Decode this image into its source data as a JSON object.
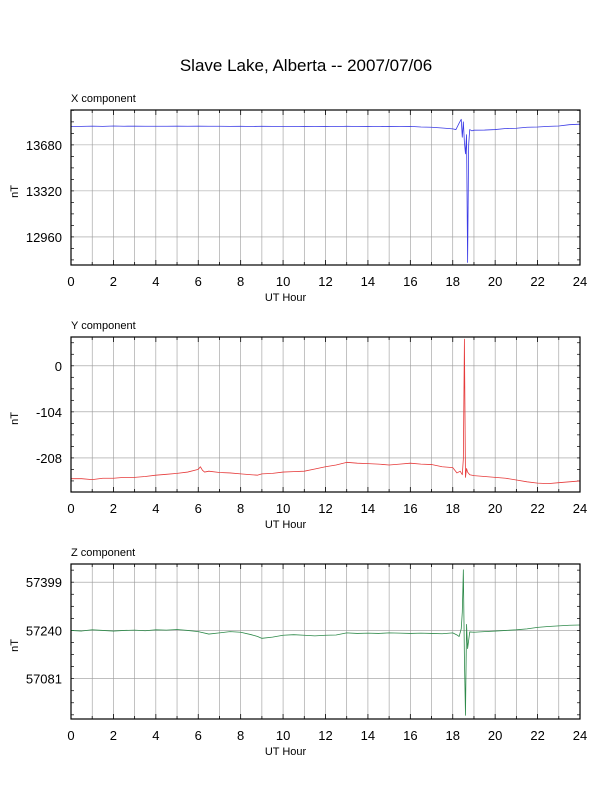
{
  "title": "Slave Lake, Alberta -- 2007/07/06",
  "chart_data": [
    {
      "type": "line",
      "panel_title": "X component",
      "xlabel": "UT Hour",
      "ylabel": "nT",
      "xlim": [
        0,
        24
      ],
      "ylim": [
        12740,
        13953
      ],
      "x_ticks": [
        "0",
        "2",
        "4",
        "6",
        "8",
        "10",
        "12",
        "14",
        "16",
        "18",
        "20",
        "22",
        "24"
      ],
      "y_ticks": [
        "13680",
        "13320",
        "12960"
      ],
      "y_tick_values": [
        13680,
        13320,
        12960
      ],
      "grid": true,
      "color": "#3a3ae6",
      "series": [
        {
          "x": [
            0,
            0.5,
            1,
            1.5,
            2,
            2.5,
            3,
            3.5,
            4,
            4.5,
            5,
            5.5,
            6,
            6.5,
            7,
            7.5,
            8,
            8.5,
            9,
            9.5,
            10,
            10.5,
            11,
            11.5,
            12,
            12.5,
            13,
            13.5,
            14,
            14.5,
            15,
            15.5,
            16,
            16.5,
            17,
            17.5,
            18,
            18.15,
            18.3,
            18.4,
            18.45,
            18.5,
            18.55,
            18.6,
            18.65,
            18.7,
            18.75,
            18.8,
            18.9,
            19,
            19.5,
            20,
            20.5,
            21,
            21.5,
            22,
            22.5,
            23,
            23.5,
            24
          ],
          "y": [
            13825,
            13825,
            13827,
            13825,
            13828,
            13826,
            13827,
            13826,
            13826,
            13826,
            13827,
            13826,
            13827,
            13826,
            13826,
            13825,
            13826,
            13824,
            13826,
            13825,
            13825,
            13823,
            13825,
            13824,
            13825,
            13823,
            13826,
            13824,
            13825,
            13823,
            13825,
            13824,
            13825,
            13820,
            13818,
            13812,
            13805,
            13800,
            13850,
            13880,
            13740,
            13860,
            13700,
            13610,
            13760,
            12760,
            13680,
            13800,
            13790,
            13795,
            13796,
            13800,
            13808,
            13810,
            13818,
            13820,
            13825,
            13828,
            13838,
            13842
          ]
        }
      ]
    },
    {
      "type": "line",
      "panel_title": "Y component",
      "xlabel": "UT Hour",
      "ylabel": "nT",
      "xlim": [
        0,
        24
      ],
      "ylim": [
        -285,
        65
      ],
      "x_ticks": [
        "0",
        "2",
        "4",
        "6",
        "8",
        "10",
        "12",
        "14",
        "16",
        "18",
        "20",
        "22",
        "24"
      ],
      "y_ticks": [
        "0",
        "-104",
        "-208"
      ],
      "y_tick_values": [
        0,
        -104,
        -208
      ],
      "grid": true,
      "color": "#e63a3a",
      "series": [
        {
          "x": [
            0,
            0.5,
            1,
            1.5,
            2,
            2.5,
            3,
            3.5,
            4,
            4.5,
            5,
            5.5,
            6,
            6.1,
            6.2,
            6.3,
            6.5,
            7,
            7.5,
            8,
            8.5,
            8.8,
            9,
            9.5,
            10,
            10.5,
            11,
            11.5,
            12,
            12.5,
            13,
            13.5,
            14,
            14.5,
            15,
            15.5,
            16,
            16.5,
            17,
            17.5,
            18,
            18.2,
            18.35,
            18.45,
            18.5,
            18.55,
            18.6,
            18.65,
            18.7,
            18.8,
            19,
            19.5,
            20,
            20.5,
            21,
            21.5,
            22,
            22.5,
            23,
            23.5,
            24
          ],
          "y": [
            -255,
            -255,
            -257,
            -254,
            -254,
            -252,
            -252,
            -250,
            -247,
            -245,
            -243,
            -240,
            -234,
            -228,
            -236,
            -240,
            -238,
            -241,
            -242,
            -244,
            -246,
            -247,
            -244,
            -243,
            -240,
            -239,
            -238,
            -233,
            -228,
            -224,
            -218,
            -220,
            -221,
            -222,
            -224,
            -222,
            -220,
            -222,
            -223,
            -228,
            -230,
            -242,
            -238,
            -246,
            -210,
            60,
            -252,
            -232,
            -240,
            -246,
            -248,
            -250,
            -252,
            -254,
            -258,
            -262,
            -265,
            -266,
            -264,
            -262,
            -260
          ]
        }
      ]
    },
    {
      "type": "line",
      "panel_title": "Z component",
      "xlabel": "UT Hour",
      "ylabel": "nT",
      "xlim": [
        0,
        24
      ],
      "ylim": [
        56948,
        57459
      ],
      "x_ticks": [
        "0",
        "2",
        "4",
        "6",
        "8",
        "10",
        "12",
        "14",
        "16",
        "18",
        "20",
        "22",
        "24"
      ],
      "y_ticks": [
        "57399",
        "57240",
        "57081"
      ],
      "y_tick_values": [
        57399,
        57240,
        57081
      ],
      "grid": true,
      "color": "#2e8a4a",
      "series": [
        {
          "x": [
            0,
            0.5,
            1,
            1.5,
            2,
            2.5,
            3,
            3.5,
            4,
            4.5,
            5,
            5.5,
            6,
            6.5,
            7,
            7.5,
            8,
            8.5,
            8.8,
            9,
            9.5,
            10,
            10.5,
            11,
            11.5,
            12,
            12.5,
            13,
            13.5,
            14,
            14.5,
            15,
            15.5,
            16,
            16.5,
            17,
            17.5,
            18,
            18.2,
            18.3,
            18.4,
            18.45,
            18.5,
            18.55,
            18.6,
            18.65,
            18.7,
            18.8,
            19,
            19.5,
            20,
            20.5,
            21,
            21.5,
            22,
            22.5,
            23,
            23.5,
            24
          ],
          "y": [
            57240,
            57238,
            57242,
            57240,
            57238,
            57240,
            57241,
            57239,
            57242,
            57241,
            57243,
            57240,
            57236,
            57228,
            57232,
            57236,
            57234,
            57226,
            57220,
            57214,
            57218,
            57224,
            57226,
            57224,
            57222,
            57224,
            57225,
            57232,
            57230,
            57231,
            57230,
            57232,
            57231,
            57230,
            57231,
            57230,
            57229,
            57232,
            57225,
            57220,
            57245,
            57300,
            57440,
            57150,
            56960,
            57260,
            57180,
            57235,
            57234,
            57236,
            57238,
            57240,
            57242,
            57245,
            57250,
            57253,
            57255,
            57257,
            57258
          ]
        }
      ]
    }
  ]
}
